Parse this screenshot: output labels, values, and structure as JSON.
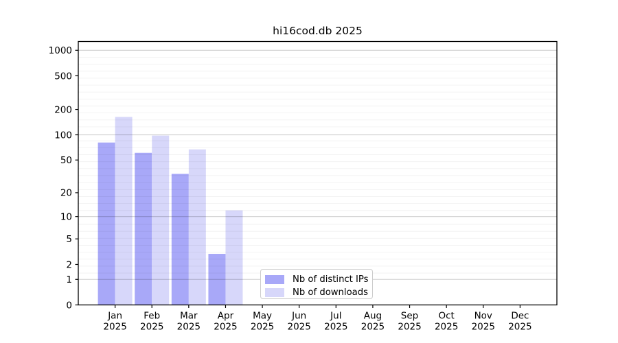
{
  "chart_data": {
    "type": "bar",
    "title": "hi16cod.db 2025",
    "categories": [
      "Jan",
      "Feb",
      "Mar",
      "Apr",
      "May",
      "Jun",
      "Jul",
      "Aug",
      "Sep",
      "Oct",
      "Nov",
      "Dec"
    ],
    "x_tick_second_line": "2025",
    "series": [
      {
        "name": "Nb of distinct IPs",
        "color": "#a8a8f8",
        "values": [
          81,
          61,
          34,
          3,
          0,
          0,
          0,
          0,
          0,
          0,
          0,
          0
        ]
      },
      {
        "name": "Nb of downloads",
        "color": "#d7d7fa",
        "values": [
          163,
          98,
          67,
          12,
          0,
          0,
          0,
          0,
          0,
          0,
          0,
          0
        ]
      }
    ],
    "y_scale": "log10(1+v)",
    "y_ticks": [
      0,
      1,
      2,
      5,
      10,
      20,
      50,
      100,
      200,
      500,
      1000
    ],
    "ylim": [
      0,
      1285
    ],
    "xlabel": "",
    "ylabel": "",
    "grid": true,
    "legend_position": "lower center"
  },
  "colors": {
    "background": "#ffffff",
    "bar_ips": "#a8a8f8",
    "bar_downloads": "#d7d7fa",
    "axis": "#000000",
    "grid_major": "#cccccc",
    "grid_minor": "#ececec",
    "legend_border": "#cccccc",
    "text": "#000000"
  }
}
